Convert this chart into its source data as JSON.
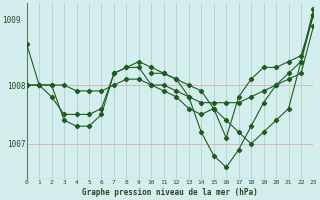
{
  "background_color": "#d4eeee",
  "plot_bg_color": "#d4eeee",
  "grid_color_v": "#aacccc",
  "grid_color_h": "#ddaaaa",
  "line_color": "#1e5c1e",
  "xlabel": "Graphe pression niveau de la mer (hPa)",
  "xlim": [
    0,
    23
  ],
  "ylim": [
    1006.4,
    1009.4
  ],
  "yticks": [
    1007,
    1008
  ],
  "ytop_label": "1009",
  "xticks": [
    0,
    1,
    2,
    3,
    4,
    5,
    6,
    7,
    8,
    9,
    10,
    11,
    12,
    13,
    14,
    15,
    16,
    17,
    18,
    19,
    20,
    21,
    22,
    23
  ],
  "series": [
    [
      1008.7,
      1008.0,
      1007.8,
      1007.5,
      1007.5,
      1007.5,
      1007.6,
      1008.2,
      1008.3,
      1008.3,
      1008.0,
      1007.9,
      1007.8,
      1007.6,
      1007.5,
      1007.6,
      1007.4,
      1007.2,
      1007.0,
      1007.2,
      1007.4,
      1007.6,
      1008.4,
      1009.2
    ],
    [
      1008.0,
      1008.0,
      1008.0,
      1008.0,
      1007.9,
      1007.9,
      1007.9,
      1008.0,
      1008.1,
      1008.1,
      1008.0,
      1008.0,
      1007.9,
      1007.8,
      1007.7,
      1007.7,
      1007.7,
      1007.7,
      1007.8,
      1007.9,
      1008.0,
      1008.1,
      1008.2,
      1009.0
    ],
    [
      1008.0,
      1008.0,
      1008.0,
      1007.4,
      1007.3,
      1007.3,
      1007.5,
      1008.2,
      1008.3,
      1008.4,
      1008.3,
      1008.2,
      1008.1,
      1007.8,
      1007.2,
      1006.8,
      1006.6,
      1006.9,
      1007.3,
      1007.7,
      1008.0,
      1008.2,
      1008.4,
      1009.3
    ],
    [
      null,
      null,
      null,
      null,
      null,
      null,
      null,
      null,
      null,
      null,
      1008.2,
      1008.2,
      1008.1,
      1008.0,
      1007.9,
      1007.6,
      1007.1,
      1007.8,
      1008.1,
      1008.3,
      1008.3,
      1008.4,
      1008.5,
      1009.2
    ]
  ]
}
